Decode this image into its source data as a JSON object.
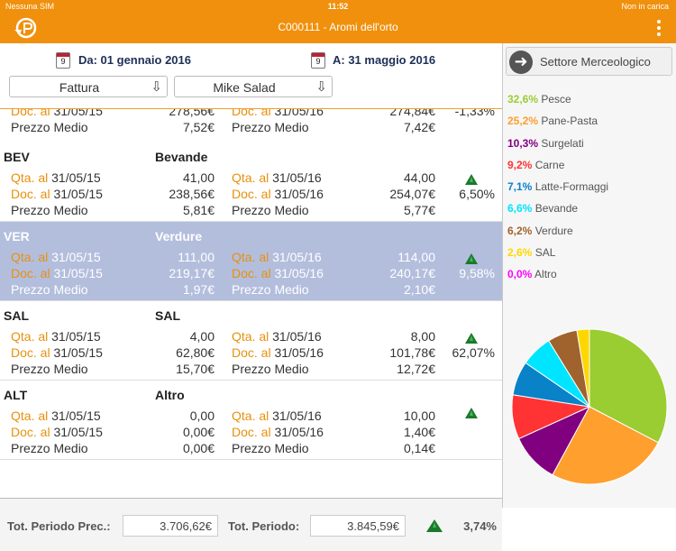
{
  "status": {
    "carrier": "Nessuna SIM",
    "time": "11:52",
    "battery": "Non in carica"
  },
  "nav": {
    "title": "C000111 - Aromi dell'orto"
  },
  "dates": {
    "cal_day": "9",
    "from": "Da: 01 gennaio 2016",
    "to": "A: 31 maggio 2016"
  },
  "selects": {
    "doc_type": "Fattura",
    "customer": "Mike Salad"
  },
  "partial_row": {
    "doc": {
      "lab": "Doc. al",
      "date1": "31/05/15",
      "val1": "278,56€",
      "date2": "31/05/16",
      "val2": "274,84€",
      "pct": "-1,33%"
    },
    "price": {
      "lab": "Prezzo Medio",
      "val1": "7,52€",
      "val2": "7,42€"
    }
  },
  "groups": [
    {
      "code": "BEV",
      "name": "Bevande",
      "qta": {
        "lab": "Qta. al",
        "date1": "31/05/15",
        "val1": "41,00",
        "date2": "31/05/16",
        "val2": "44,00"
      },
      "doc": {
        "lab": "Doc. al",
        "date1": "31/05/15",
        "val1": "238,56€",
        "date2": "31/05/16",
        "val2": "254,07€",
        "pct": "6,50%"
      },
      "price": {
        "lab": "Prezzo Medio",
        "val1": "5,81€",
        "val2": "5,77€"
      }
    },
    {
      "code": "VER",
      "name": "Verdure",
      "qta": {
        "lab": "Qta. al",
        "date1": "31/05/15",
        "val1": "111,00",
        "date2": "31/05/16",
        "val2": "114,00"
      },
      "doc": {
        "lab": "Doc. al",
        "date1": "31/05/15",
        "val1": "219,17€",
        "date2": "31/05/16",
        "val2": "240,17€",
        "pct": "9,58%"
      },
      "price": {
        "lab": "Prezzo Medio",
        "val1": "1,97€",
        "val2": "2,10€"
      }
    },
    {
      "code": "SAL",
      "name": "SAL",
      "qta": {
        "lab": "Qta. al",
        "date1": "31/05/15",
        "val1": "4,00",
        "date2": "31/05/16",
        "val2": "8,00"
      },
      "doc": {
        "lab": "Doc. al",
        "date1": "31/05/15",
        "val1": "62,80€",
        "date2": "31/05/16",
        "val2": "101,78€",
        "pct": "62,07%"
      },
      "price": {
        "lab": "Prezzo Medio",
        "val1": "15,70€",
        "val2": "12,72€"
      }
    },
    {
      "code": "ALT",
      "name": "Altro",
      "qta": {
        "lab": "Qta. al",
        "date1": "31/05/15",
        "val1": "0,00",
        "date2": "31/05/16",
        "val2": "10,00"
      },
      "doc": {
        "lab": "Doc. al",
        "date1": "31/05/15",
        "val1": "0,00€",
        "date2": "31/05/16",
        "val2": "1,40€",
        "pct": ""
      },
      "price": {
        "lab": "Prezzo Medio",
        "val1": "0,00€",
        "val2": "0,14€"
      }
    }
  ],
  "footer": {
    "prev_label": "Tot. Periodo Prec.:",
    "prev_value": "3.706,62€",
    "cur_label": "Tot. Periodo:",
    "cur_value": "3.845,59€",
    "pct": "3,74%"
  },
  "sector": {
    "button": "Settore Merceologico"
  },
  "legend": [
    {
      "pct": "32,6%",
      "name": "Pesce",
      "color": "#9acd32"
    },
    {
      "pct": "25,2%",
      "name": "Pane-Pasta",
      "color": "#ff9f2e"
    },
    {
      "pct": "10,3%",
      "name": "Surgelati",
      "color": "#800080"
    },
    {
      "pct": "9,2%",
      "name": "Carne",
      "color": "#ff3333"
    },
    {
      "pct": "7,1%",
      "name": "Latte-Formaggi",
      "color": "#0a82c8"
    },
    {
      "pct": "6,6%",
      "name": "Bevande",
      "color": "#00e5ff"
    },
    {
      "pct": "6,2%",
      "name": "Verdure",
      "color": "#a0632e"
    },
    {
      "pct": "2,6%",
      "name": "SAL",
      "color": "#ffd700"
    },
    {
      "pct": "0,0%",
      "name": "Altro",
      "color": "#ff00ff"
    }
  ],
  "chart_data": {
    "type": "pie",
    "categories": [
      "Pesce",
      "Pane-Pasta",
      "Surgelati",
      "Carne",
      "Latte-Formaggi",
      "Bevande",
      "Verdure",
      "SAL",
      "Altro"
    ],
    "values": [
      32.6,
      25.2,
      10.3,
      9.2,
      7.1,
      6.6,
      6.2,
      2.6,
      0.0
    ],
    "colors": [
      "#9acd32",
      "#ff9f2e",
      "#800080",
      "#ff3333",
      "#0a82c8",
      "#00e5ff",
      "#a0632e",
      "#ffd700",
      "#ff00ff"
    ]
  }
}
